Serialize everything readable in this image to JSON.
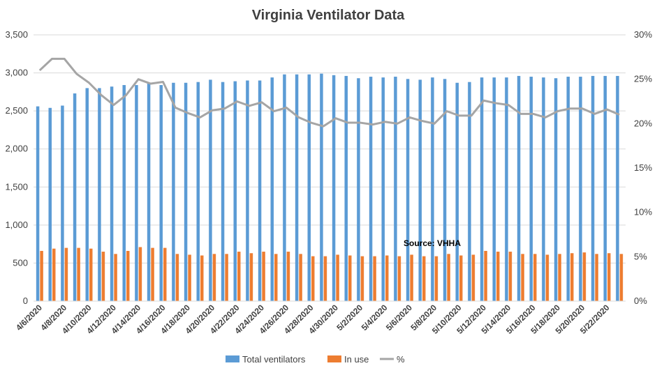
{
  "chart_data": {
    "type": "bar",
    "title": "Virginia Ventilator Data",
    "x": [
      "4/6/2020",
      "4/7/2020",
      "4/8/2020",
      "4/9/2020",
      "4/10/2020",
      "4/11/2020",
      "4/12/2020",
      "4/13/2020",
      "4/14/2020",
      "4/15/2020",
      "4/16/2020",
      "4/17/2020",
      "4/18/2020",
      "4/19/2020",
      "4/20/2020",
      "4/21/2020",
      "4/22/2020",
      "4/23/2020",
      "4/24/2020",
      "4/25/2020",
      "4/26/2020",
      "4/27/2020",
      "4/28/2020",
      "4/29/2020",
      "4/30/2020",
      "5/1/2020",
      "5/2/2020",
      "5/3/2020",
      "5/4/2020",
      "5/5/2020",
      "5/6/2020",
      "5/7/2020",
      "5/8/2020",
      "5/9/2020",
      "5/10/2020",
      "5/11/2020",
      "5/12/2020",
      "5/13/2020",
      "5/14/2020",
      "5/15/2020",
      "5/16/2020",
      "5/17/2020",
      "5/18/2020",
      "5/19/2020",
      "5/20/2020",
      "5/21/2020",
      "5/22/2020",
      "5/23/2020"
    ],
    "x_tick_labels": [
      "4/6/2020",
      "4/8/2020",
      "4/10/2020",
      "4/12/2020",
      "4/14/2020",
      "4/16/2020",
      "4/18/2020",
      "4/20/2020",
      "4/22/2020",
      "4/24/2020",
      "4/26/2020",
      "4/28/2020",
      "4/30/2020",
      "5/2/2020",
      "5/4/2020",
      "5/6/2020",
      "5/8/2020",
      "5/10/2020",
      "5/12/2020",
      "5/14/2020",
      "5/16/2020",
      "5/18/2020",
      "5/20/2020",
      "5/22/2020"
    ],
    "series": [
      {
        "name": "Total ventilators",
        "axis": "left",
        "kind": "bar",
        "color": "#5b9bd5",
        "values": [
          2560,
          2540,
          2570,
          2730,
          2800,
          2800,
          2820,
          2840,
          2840,
          2860,
          2840,
          2870,
          2870,
          2880,
          2910,
          2880,
          2890,
          2900,
          2900,
          2940,
          2980,
          2980,
          2980,
          2990,
          2970,
          2960,
          2930,
          2950,
          2940,
          2950,
          2920,
          2910,
          2940,
          2920,
          2870,
          2880,
          2940,
          2940,
          2940,
          2960,
          2950,
          2940,
          2930,
          2950,
          2950,
          2960,
          2960,
          2960
        ]
      },
      {
        "name": "In use",
        "axis": "left",
        "kind": "bar",
        "color": "#ed7d31",
        "values": [
          660,
          690,
          700,
          700,
          690,
          650,
          620,
          660,
          710,
          700,
          700,
          620,
          610,
          600,
          620,
          620,
          650,
          630,
          650,
          620,
          650,
          620,
          590,
          590,
          610,
          600,
          590,
          590,
          600,
          590,
          610,
          590,
          590,
          620,
          600,
          610,
          660,
          650,
          650,
          620,
          620,
          610,
          620,
          630,
          640,
          620,
          630,
          620
        ]
      },
      {
        "name": "%",
        "axis": "right",
        "kind": "line",
        "color": "#a5a5a5",
        "values": [
          0.26,
          0.273,
          0.273,
          0.256,
          0.246,
          0.232,
          0.221,
          0.232,
          0.25,
          0.245,
          0.247,
          0.218,
          0.212,
          0.207,
          0.215,
          0.217,
          0.225,
          0.22,
          0.224,
          0.214,
          0.218,
          0.207,
          0.201,
          0.197,
          0.206,
          0.201,
          0.201,
          0.199,
          0.202,
          0.2,
          0.207,
          0.203,
          0.2,
          0.214,
          0.209,
          0.209,
          0.226,
          0.223,
          0.221,
          0.211,
          0.211,
          0.207,
          0.214,
          0.217,
          0.217,
          0.211,
          0.216,
          0.21
        ]
      }
    ],
    "y_left": {
      "min": 0,
      "max": 3500,
      "ticks": [
        "0",
        "500",
        "1,000",
        "1,500",
        "2,000",
        "2,500",
        "3,000",
        "3,500"
      ]
    },
    "y_right": {
      "min": 0,
      "max": 0.3,
      "ticks": [
        "0%",
        "5%",
        "10%",
        "15%",
        "20%",
        "25%",
        "30%"
      ]
    },
    "grid": true,
    "legend_position": "bottom",
    "legend": [
      "Total ventilators",
      "In use",
      "%"
    ],
    "annotation": "Source: VHHA"
  }
}
